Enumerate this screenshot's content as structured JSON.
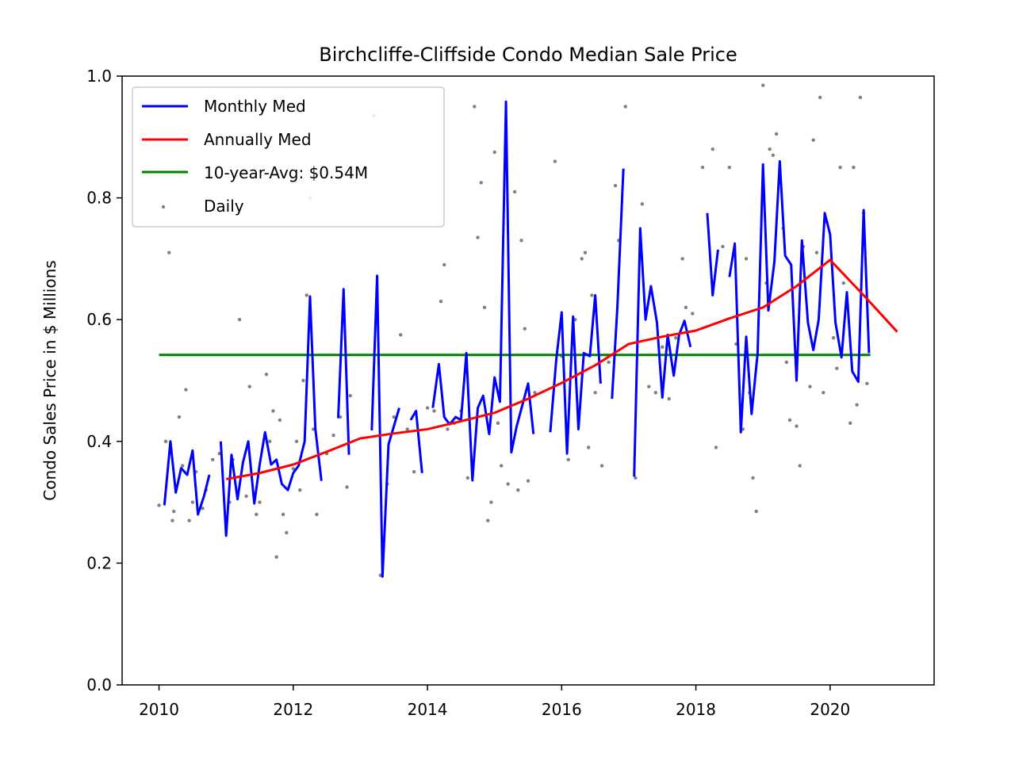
{
  "chart_data": {
    "type": "line",
    "title": "Birchcliffe-Cliffside Condo Median Sale Price",
    "xlabel": "",
    "ylabel": "Condo Sales Price in $ Millions",
    "xlim": [
      2009.45,
      2021.55
    ],
    "ylim": [
      0.0,
      1.0
    ],
    "xticks": [
      "2010",
      "2012",
      "2014",
      "2016",
      "2018",
      "2020"
    ],
    "yticks": [
      "0.0",
      "0.2",
      "0.4",
      "0.6",
      "0.8",
      "1.0"
    ],
    "grid": false,
    "legend_position": "top-left",
    "series": [
      {
        "name": "Monthly Med",
        "color": "#0000ff",
        "segments": [
          [
            [
              2010.08,
              0.295
            ],
            [
              2010.17,
              0.4
            ],
            [
              2010.25,
              0.316
            ],
            [
              2010.33,
              0.356
            ],
            [
              2010.42,
              0.345
            ],
            [
              2010.5,
              0.385
            ],
            [
              2010.58,
              0.28
            ],
            [
              2010.67,
              0.31
            ],
            [
              2010.75,
              0.345
            ]
          ],
          [
            [
              2010.92,
              0.4
            ],
            [
              2011.0,
              0.245
            ],
            [
              2011.08,
              0.378
            ],
            [
              2011.17,
              0.305
            ],
            [
              2011.25,
              0.365
            ],
            [
              2011.33,
              0.4
            ],
            [
              2011.42,
              0.298
            ],
            [
              2011.5,
              0.362
            ],
            [
              2011.58,
              0.415
            ],
            [
              2011.67,
              0.362
            ],
            [
              2011.75,
              0.37
            ],
            [
              2011.83,
              0.33
            ],
            [
              2011.92,
              0.32
            ],
            [
              2012.0,
              0.348
            ],
            [
              2012.08,
              0.36
            ],
            [
              2012.17,
              0.4
            ],
            [
              2012.25,
              0.638
            ],
            [
              2012.33,
              0.42
            ],
            [
              2012.42,
              0.335
            ]
          ],
          [
            [
              2012.67,
              0.438
            ],
            [
              2012.75,
              0.65
            ],
            [
              2012.83,
              0.378
            ]
          ],
          [
            [
              2013.17,
              0.418
            ],
            [
              2013.25,
              0.672
            ],
            [
              2013.33,
              0.178
            ],
            [
              2013.42,
              0.395
            ],
            [
              2013.5,
              0.425
            ],
            [
              2013.58,
              0.455
            ]
          ],
          [
            [
              2013.75,
              0.435
            ],
            [
              2013.83,
              0.45
            ],
            [
              2013.92,
              0.348
            ]
          ],
          [
            [
              2014.08,
              0.455
            ],
            [
              2014.17,
              0.527
            ],
            [
              2014.25,
              0.44
            ],
            [
              2014.33,
              0.428
            ],
            [
              2014.42,
              0.44
            ],
            [
              2014.5,
              0.435
            ],
            [
              2014.58,
              0.545
            ],
            [
              2014.67,
              0.336
            ],
            [
              2014.75,
              0.455
            ],
            [
              2014.83,
              0.475
            ],
            [
              2014.92,
              0.412
            ],
            [
              2015.0,
              0.505
            ],
            [
              2015.08,
              0.465
            ],
            [
              2015.17,
              0.958
            ],
            [
              2015.25,
              0.382
            ],
            [
              2015.33,
              0.425
            ],
            [
              2015.42,
              0.462
            ],
            [
              2015.5,
              0.495
            ],
            [
              2015.58,
              0.412
            ]
          ],
          [
            [
              2015.83,
              0.415
            ],
            [
              2015.92,
              0.535
            ],
            [
              2016.0,
              0.612
            ],
            [
              2016.08,
              0.38
            ],
            [
              2016.17,
              0.605
            ],
            [
              2016.25,
              0.42
            ],
            [
              2016.33,
              0.545
            ],
            [
              2016.42,
              0.54
            ],
            [
              2016.5,
              0.64
            ],
            [
              2016.58,
              0.495
            ]
          ],
          [
            [
              2016.75,
              0.47
            ],
            [
              2016.83,
              0.62
            ],
            [
              2016.92,
              0.848
            ]
          ],
          [
            [
              2017.08,
              0.342
            ],
            [
              2017.17,
              0.75
            ],
            [
              2017.25,
              0.6
            ],
            [
              2017.33,
              0.655
            ],
            [
              2017.42,
              0.595
            ],
            [
              2017.5,
              0.472
            ],
            [
              2017.58,
              0.575
            ],
            [
              2017.67,
              0.508
            ],
            [
              2017.75,
              0.575
            ],
            [
              2017.83,
              0.598
            ],
            [
              2017.92,
              0.555
            ]
          ],
          [
            [
              2018.17,
              0.775
            ],
            [
              2018.25,
              0.64
            ],
            [
              2018.33,
              0.715
            ]
          ],
          [
            [
              2018.5,
              0.67
            ],
            [
              2018.58,
              0.725
            ],
            [
              2018.67,
              0.415
            ],
            [
              2018.75,
              0.572
            ],
            [
              2018.83,
              0.445
            ],
            [
              2018.92,
              0.545
            ],
            [
              2019.0,
              0.855
            ],
            [
              2019.08,
              0.615
            ],
            [
              2019.17,
              0.695
            ],
            [
              2019.25,
              0.86
            ],
            [
              2019.33,
              0.705
            ],
            [
              2019.42,
              0.69
            ],
            [
              2019.5,
              0.5
            ],
            [
              2019.58,
              0.73
            ],
            [
              2019.67,
              0.595
            ],
            [
              2019.75,
              0.55
            ],
            [
              2019.83,
              0.6
            ],
            [
              2019.92,
              0.775
            ],
            [
              2020.0,
              0.74
            ],
            [
              2020.08,
              0.595
            ],
            [
              2020.17,
              0.538
            ],
            [
              2020.25,
              0.645
            ],
            [
              2020.33,
              0.515
            ],
            [
              2020.42,
              0.498
            ],
            [
              2020.5,
              0.78
            ],
            [
              2020.58,
              0.545
            ]
          ]
        ]
      },
      {
        "name": "Annually Med",
        "color": "#ff0000",
        "points": [
          [
            2011.0,
            0.338
          ],
          [
            2011.5,
            0.348
          ],
          [
            2012.0,
            0.362
          ],
          [
            2012.5,
            0.383
          ],
          [
            2013.0,
            0.405
          ],
          [
            2013.5,
            0.413
          ],
          [
            2014.0,
            0.42
          ],
          [
            2014.5,
            0.433
          ],
          [
            2015.0,
            0.447
          ],
          [
            2015.5,
            0.47
          ],
          [
            2016.0,
            0.496
          ],
          [
            2016.5,
            0.525
          ],
          [
            2017.0,
            0.56
          ],
          [
            2017.5,
            0.572
          ],
          [
            2018.0,
            0.582
          ],
          [
            2018.5,
            0.602
          ],
          [
            2019.0,
            0.62
          ],
          [
            2019.5,
            0.655
          ],
          [
            2020.0,
            0.698
          ],
          [
            2020.5,
            0.64
          ],
          [
            2021.0,
            0.58
          ]
        ]
      },
      {
        "name": "10-year-Avg: $0.54M",
        "color": "#008000",
        "points": [
          [
            2010.0,
            0.542
          ],
          [
            2020.6,
            0.542
          ]
        ]
      },
      {
        "name": "Daily",
        "color": "#808080",
        "type": "scatter",
        "points": [
          [
            2010.0,
            0.295
          ],
          [
            2010.1,
            0.4
          ],
          [
            2010.15,
            0.71
          ],
          [
            2010.2,
            0.27
          ],
          [
            2010.22,
            0.285
          ],
          [
            2010.3,
            0.44
          ],
          [
            2010.35,
            0.36
          ],
          [
            2010.4,
            0.485
          ],
          [
            2010.45,
            0.27
          ],
          [
            2010.5,
            0.3
          ],
          [
            2010.55,
            0.35
          ],
          [
            2010.65,
            0.29
          ],
          [
            2010.7,
            0.32
          ],
          [
            2010.8,
            0.37
          ],
          [
            2010.9,
            0.38
          ],
          [
            2011.05,
            0.3
          ],
          [
            2011.1,
            0.37
          ],
          [
            2011.2,
            0.6
          ],
          [
            2011.3,
            0.31
          ],
          [
            2011.35,
            0.49
          ],
          [
            2011.45,
            0.28
          ],
          [
            2011.5,
            0.3
          ],
          [
            2011.6,
            0.51
          ],
          [
            2011.65,
            0.4
          ],
          [
            2011.7,
            0.45
          ],
          [
            2011.75,
            0.21
          ],
          [
            2011.8,
            0.435
          ],
          [
            2011.85,
            0.28
          ],
          [
            2011.9,
            0.25
          ],
          [
            2012.0,
            0.355
          ],
          [
            2012.05,
            0.4
          ],
          [
            2012.1,
            0.32
          ],
          [
            2012.15,
            0.5
          ],
          [
            2012.2,
            0.64
          ],
          [
            2012.25,
            0.8
          ],
          [
            2012.3,
            0.42
          ],
          [
            2012.35,
            0.28
          ],
          [
            2012.5,
            0.38
          ],
          [
            2012.6,
            0.41
          ],
          [
            2012.7,
            0.44
          ],
          [
            2012.8,
            0.325
          ],
          [
            2012.85,
            0.475
          ],
          [
            2013.2,
            0.935
          ],
          [
            2013.3,
            0.18
          ],
          [
            2013.4,
            0.33
          ],
          [
            2013.5,
            0.44
          ],
          [
            2013.6,
            0.575
          ],
          [
            2013.7,
            0.42
          ],
          [
            2013.8,
            0.35
          ],
          [
            2014.0,
            0.455
          ],
          [
            2014.1,
            0.45
          ],
          [
            2014.2,
            0.63
          ],
          [
            2014.25,
            0.69
          ],
          [
            2014.3,
            0.42
          ],
          [
            2014.4,
            0.43
          ],
          [
            2014.5,
            0.45
          ],
          [
            2014.6,
            0.34
          ],
          [
            2014.7,
            0.95
          ],
          [
            2014.75,
            0.735
          ],
          [
            2014.8,
            0.825
          ],
          [
            2014.85,
            0.62
          ],
          [
            2014.9,
            0.27
          ],
          [
            2014.95,
            0.3
          ],
          [
            2015.0,
            0.875
          ],
          [
            2015.05,
            0.43
          ],
          [
            2015.1,
            0.36
          ],
          [
            2015.2,
            0.33
          ],
          [
            2015.3,
            0.81
          ],
          [
            2015.35,
            0.32
          ],
          [
            2015.4,
            0.73
          ],
          [
            2015.45,
            0.585
          ],
          [
            2015.5,
            0.335
          ],
          [
            2015.6,
            0.48
          ],
          [
            2015.9,
            0.86
          ],
          [
            2016.0,
            0.54
          ],
          [
            2016.1,
            0.37
          ],
          [
            2016.2,
            0.6
          ],
          [
            2016.3,
            0.7
          ],
          [
            2016.35,
            0.71
          ],
          [
            2016.4,
            0.39
          ],
          [
            2016.45,
            0.64
          ],
          [
            2016.5,
            0.48
          ],
          [
            2016.6,
            0.36
          ],
          [
            2016.7,
            0.53
          ],
          [
            2016.8,
            0.82
          ],
          [
            2016.85,
            0.73
          ],
          [
            2016.95,
            0.95
          ],
          [
            2017.1,
            0.34
          ],
          [
            2017.2,
            0.79
          ],
          [
            2017.3,
            0.49
          ],
          [
            2017.4,
            0.48
          ],
          [
            2017.5,
            0.555
          ],
          [
            2017.6,
            0.47
          ],
          [
            2017.7,
            0.57
          ],
          [
            2017.8,
            0.7
          ],
          [
            2017.85,
            0.62
          ],
          [
            2017.95,
            0.61
          ],
          [
            2018.1,
            0.85
          ],
          [
            2018.25,
            0.88
          ],
          [
            2018.3,
            0.39
          ],
          [
            2018.4,
            0.72
          ],
          [
            2018.5,
            0.85
          ],
          [
            2018.6,
            0.56
          ],
          [
            2018.7,
            0.42
          ],
          [
            2018.75,
            0.7
          ],
          [
            2018.8,
            0.48
          ],
          [
            2018.85,
            0.34
          ],
          [
            2018.9,
            0.285
          ],
          [
            2019.0,
            0.985
          ],
          [
            2019.05,
            0.66
          ],
          [
            2019.1,
            0.88
          ],
          [
            2019.15,
            0.87
          ],
          [
            2019.2,
            0.905
          ],
          [
            2019.25,
            0.83
          ],
          [
            2019.3,
            0.75
          ],
          [
            2019.35,
            0.53
          ],
          [
            2019.4,
            0.435
          ],
          [
            2019.5,
            0.425
          ],
          [
            2019.55,
            0.36
          ],
          [
            2019.6,
            0.72
          ],
          [
            2019.7,
            0.49
          ],
          [
            2019.75,
            0.895
          ],
          [
            2019.8,
            0.71
          ],
          [
            2019.85,
            0.965
          ],
          [
            2019.9,
            0.48
          ],
          [
            2019.95,
            0.76
          ],
          [
            2020.05,
            0.57
          ],
          [
            2020.1,
            0.52
          ],
          [
            2020.15,
            0.85
          ],
          [
            2020.2,
            0.66
          ],
          [
            2020.3,
            0.43
          ],
          [
            2020.35,
            0.85
          ],
          [
            2020.4,
            0.46
          ],
          [
            2020.45,
            0.965
          ],
          [
            2020.5,
            0.775
          ],
          [
            2020.55,
            0.495
          ]
        ]
      }
    ]
  }
}
